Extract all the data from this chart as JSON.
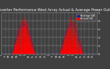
{
  "title": "Solar PV/Inverter Performance West Array Actual & Average Power Output",
  "title_fontsize": 3.8,
  "background_color": "#404040",
  "plot_bg_color": "#404040",
  "grid_color": "#ffffff",
  "bar_color": "#ff0000",
  "avg_line_color": "#0000dd",
  "legend_actual_label": "Actual kW",
  "legend_avg_label": "Average kW",
  "legend_actual_color": "#ff0000",
  "legend_avg_color": "#0000dd",
  "tick_color": "#ffffff",
  "tick_fontsize": 2.8,
  "ylim": [
    0,
    1.0
  ],
  "num_points": 730,
  "xlim": [
    0,
    730
  ]
}
